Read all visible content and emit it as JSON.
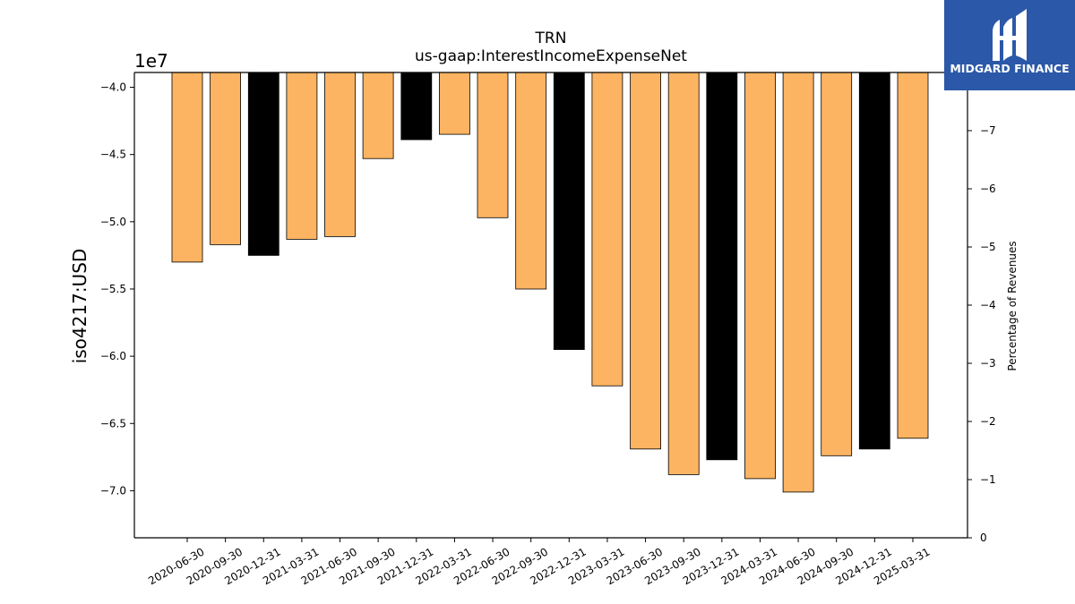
{
  "chart_data": {
    "type": "bar",
    "title": "TRN",
    "subtitle": "us-gaap:InterestIncomeExpenseNet",
    "ylabel": "iso4217:USD",
    "y2label": "Percentage of Revenues",
    "y_offset_label": "1e7",
    "ylim": [
      -73.5,
      -38.9
    ],
    "y_unit_scale": 1000000,
    "y2lim": [
      0,
      -8
    ],
    "yticks": [
      -40,
      -45,
      -50,
      -55,
      -60,
      -65,
      -70
    ],
    "ytick_labels": [
      "−4.0",
      "−4.5",
      "−5.0",
      "−5.5",
      "−6.0",
      "−6.5",
      "−7.0"
    ],
    "y2ticks": [
      0,
      -1,
      -2,
      -3,
      -4,
      -5,
      -6,
      -7
    ],
    "y2tick_labels": [
      "0",
      "−1",
      "−2",
      "−3",
      "−4",
      "−5",
      "−6",
      "−7"
    ],
    "categories": [
      "2020-06-30",
      "2020-09-30",
      "2020-12-31",
      "2021-03-31",
      "2021-06-30",
      "2021-09-30",
      "2021-12-31",
      "2022-03-31",
      "2022-06-30",
      "2022-09-30",
      "2022-12-31",
      "2023-03-31",
      "2023-06-30",
      "2023-09-30",
      "2023-12-31",
      "2024-03-31",
      "2024-06-30",
      "2024-09-30",
      "2024-12-31",
      "2025-03-31"
    ],
    "values": [
      -53.0,
      -51.7,
      -52.5,
      -51.3,
      -51.1,
      -45.3,
      -43.9,
      -43.5,
      -49.7,
      -55.0,
      -59.5,
      -62.2,
      -66.9,
      -68.8,
      -67.7,
      -69.1,
      -70.1,
      -67.4,
      -66.9,
      -66.1
    ],
    "bar_colors": [
      "#fdb462",
      "#fdb462",
      "#000000",
      "#fdb462",
      "#fdb462",
      "#fdb462",
      "#000000",
      "#fdb462",
      "#fdb462",
      "#fdb462",
      "#000000",
      "#fdb462",
      "#fdb462",
      "#fdb462",
      "#000000",
      "#fdb462",
      "#fdb462",
      "#fdb462",
      "#000000",
      "#fdb462"
    ],
    "grid": false
  },
  "logo": {
    "text": "MIDGARD FINANCE",
    "bg_color": "#2b58a8"
  }
}
